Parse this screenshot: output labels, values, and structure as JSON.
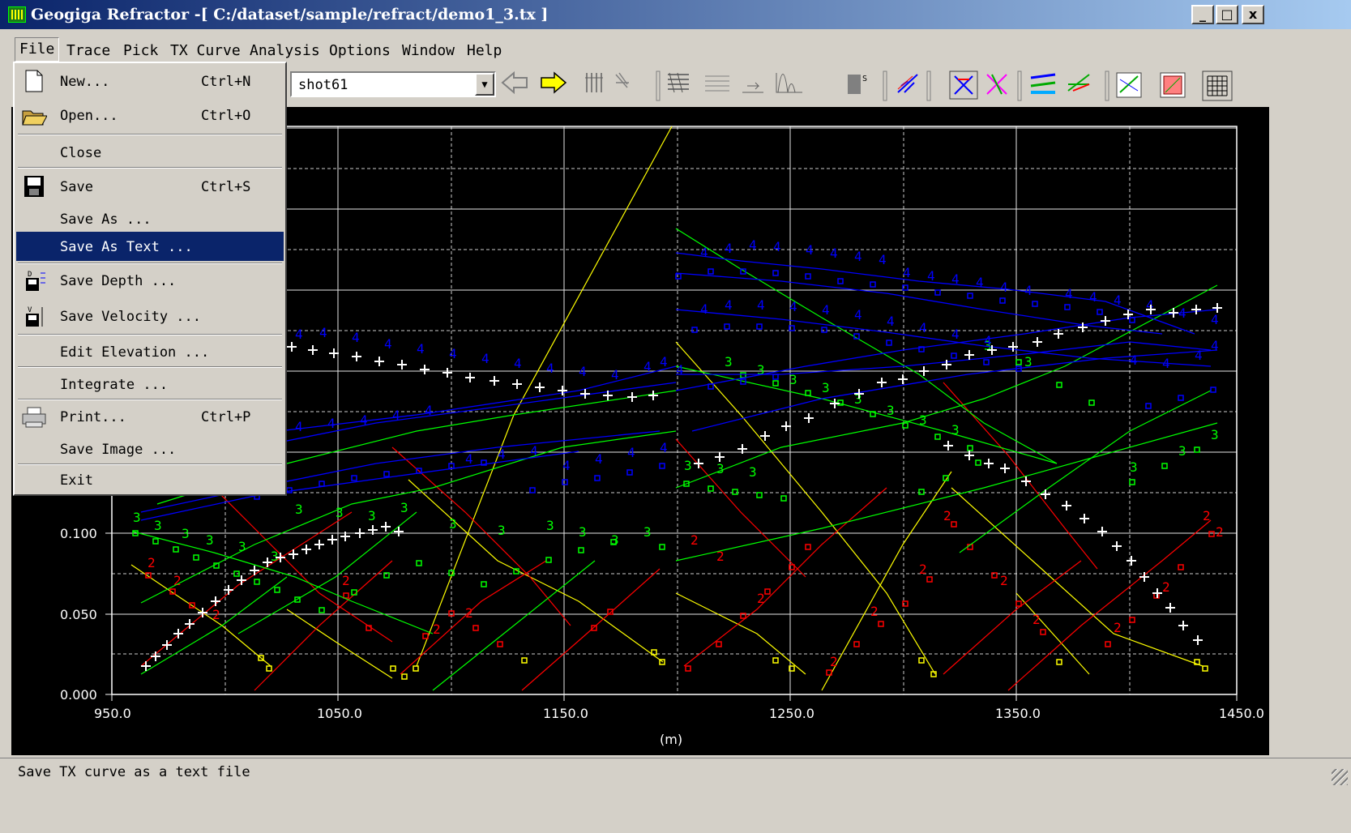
{
  "window": {
    "title": "Geogiga Refractor -[ C:/dataset/sample/refract/demo1_3.tx ]",
    "controls": {
      "minimize": "_",
      "maximize": "□",
      "close": "x"
    }
  },
  "menubar": {
    "items": [
      {
        "label": "File",
        "name": "menu-file"
      },
      {
        "label": "Trace",
        "name": "menu-trace"
      },
      {
        "label": "Pick",
        "name": "menu-pick"
      },
      {
        "label": "TX Curve",
        "name": "menu-tx-curve"
      },
      {
        "label": "Analysis",
        "name": "menu-analysis"
      },
      {
        "label": "Options",
        "name": "menu-options"
      },
      {
        "label": "Window",
        "name": "menu-window"
      },
      {
        "label": "Help",
        "name": "menu-help"
      }
    ]
  },
  "toolbar": {
    "shot_select": {
      "value": "shot61"
    },
    "buttons": [
      "back-arrow-icon",
      "forward-arrow-icon",
      "wiggle-traces-icon",
      "variable-area-icon",
      "trace-display-icon",
      "amplitude-icon",
      "time-shift-icon",
      "spectrum-icon",
      "save-shot-icon",
      "tx-curve-icon",
      "pick-tool-icon",
      "reciprocal-icon",
      "layer-model-icon",
      "velocity-model-icon",
      "chart-icon",
      "zoom-window-icon",
      "grid-toggle-icon"
    ]
  },
  "file_menu": {
    "items": [
      {
        "label": "New...",
        "shortcut": "Ctrl+N",
        "icon": "new-file-icon"
      },
      {
        "label": "Open...",
        "shortcut": "Ctrl+O",
        "icon": "open-folder-icon"
      },
      {
        "label": "Close",
        "shortcut": "",
        "icon": ""
      },
      {
        "label": "Save",
        "shortcut": "Ctrl+S",
        "icon": "save-disk-icon"
      },
      {
        "label": "Save As ...",
        "shortcut": "",
        "icon": ""
      },
      {
        "label": "Save As Text ...",
        "shortcut": "",
        "icon": "",
        "highlighted": true
      },
      {
        "label": "Save Depth ...",
        "shortcut": "",
        "icon": "save-depth-icon"
      },
      {
        "label": "Save Velocity ...",
        "shortcut": "",
        "icon": "save-velocity-icon"
      },
      {
        "label": "Edit Elevation ...",
        "shortcut": "",
        "icon": ""
      },
      {
        "label": "Integrate ...",
        "shortcut": "",
        "icon": ""
      },
      {
        "label": "Print...",
        "shortcut": "Ctrl+P",
        "icon": "printer-icon"
      },
      {
        "label": "Save Image ...",
        "shortcut": "",
        "icon": ""
      },
      {
        "label": "Exit",
        "shortcut": "",
        "icon": ""
      }
    ]
  },
  "plot": {
    "xlabel": "(m)",
    "x_ticks": [
      "950.0",
      "1050.0",
      "1150.0",
      "1250.0",
      "1350.0",
      "1450.0"
    ],
    "y_ticks": [
      "0.000",
      "0.050",
      "0.100"
    ],
    "colors": {
      "layer1": "#ffff00",
      "layer2": "#ff0000",
      "layer3": "#00ff00",
      "layer4": "#0000ff",
      "picks": "#ffffff"
    }
  },
  "status": {
    "text": "Save TX curve as a text file"
  }
}
